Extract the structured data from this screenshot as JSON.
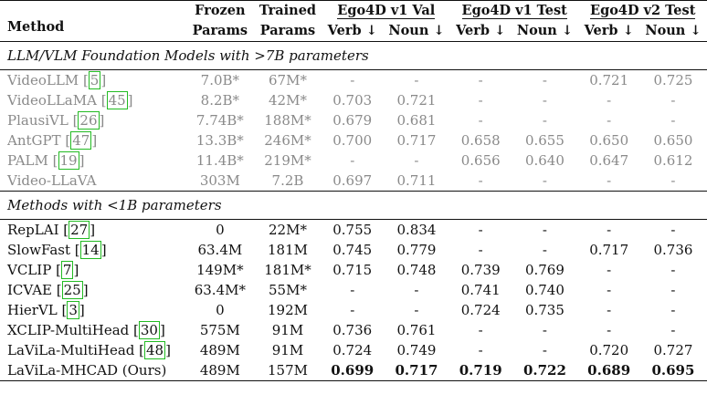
{
  "headers": {
    "method": "Method",
    "frozen": [
      "Frozen",
      "Params"
    ],
    "trained": [
      "Trained",
      "Params"
    ],
    "groups": [
      "Ego4D v1 Val",
      "Ego4D v1 Test",
      "Ego4D v2 Test"
    ],
    "sub": [
      "Verb ↓",
      "Noun ↓",
      "Verb ↓",
      "Noun ↓",
      "Verb ↓",
      "Noun ↓"
    ]
  },
  "section1": "LLM/VLM Foundation Models with >7B parameters",
  "section2": "Methods with <1B parameters",
  "rows_llm": [
    {
      "name": "VideoLLM",
      "cite": "5",
      "frozen": "7.0B*",
      "trained": "67M*",
      "vals": [
        "-",
        "-",
        "-",
        "-",
        "0.721",
        "0.725"
      ]
    },
    {
      "name": "VideoLLaMA",
      "cite": "45",
      "frozen": "8.2B*",
      "trained": "42M*",
      "vals": [
        "0.703",
        "0.721",
        "-",
        "-",
        "-",
        "-"
      ]
    },
    {
      "name": "PlausiVL",
      "cite": "26",
      "frozen": "7.74B*",
      "trained": "188M*",
      "vals": [
        "0.679",
        "0.681",
        "-",
        "-",
        "-",
        "-"
      ]
    },
    {
      "name": "AntGPT",
      "cite": "47",
      "frozen": "13.3B*",
      "trained": "246M*",
      "vals": [
        "0.700",
        "0.717",
        "0.658",
        "0.655",
        "0.650",
        "0.650"
      ]
    },
    {
      "name": "PALM",
      "cite": "19",
      "frozen": "11.4B*",
      "trained": "219M*",
      "vals": [
        "-",
        "-",
        "0.656",
        "0.640",
        "0.647",
        "0.612"
      ]
    },
    {
      "name": "Video-LLaVA",
      "cite": "",
      "frozen": "303M",
      "trained": "7.2B",
      "vals": [
        "0.697",
        "0.711",
        "-",
        "-",
        "-",
        "-"
      ]
    }
  ],
  "rows_small": [
    {
      "name": "RepLAI",
      "cite": "27",
      "frozen": "0",
      "trained": "22M*",
      "vals": [
        "0.755",
        "0.834",
        "-",
        "-",
        "-",
        "-"
      ]
    },
    {
      "name": "SlowFast",
      "cite": "14",
      "frozen": "63.4M",
      "trained": "181M",
      "vals": [
        "0.745",
        "0.779",
        "-",
        "-",
        "0.717",
        "0.736"
      ]
    },
    {
      "name": "VCLIP",
      "cite": "7",
      "frozen": "149M*",
      "trained": "181M*",
      "vals": [
        "0.715",
        "0.748",
        "0.739",
        "0.769",
        "-",
        "-"
      ]
    },
    {
      "name": "ICVAE",
      "cite": "25",
      "frozen": "63.4M*",
      "trained": "55M*",
      "vals": [
        "-",
        "-",
        "0.741",
        "0.740",
        "-",
        "-"
      ]
    },
    {
      "name": "HierVL",
      "cite": "3",
      "frozen": "0",
      "trained": "192M",
      "vals": [
        "-",
        "-",
        "0.724",
        "0.735",
        "-",
        "-"
      ]
    },
    {
      "name": "XCLIP-MultiHead",
      "cite": "30",
      "frozen": "575M",
      "trained": "91M",
      "vals": [
        "0.736",
        "0.761",
        "-",
        "-",
        "-",
        "-"
      ]
    },
    {
      "name": "LaViLa-MultiHead",
      "cite": "48",
      "frozen": "489M",
      "trained": "91M",
      "vals": [
        "0.724",
        "0.749",
        "-",
        "-",
        "0.720",
        "0.727"
      ]
    }
  ],
  "ours": {
    "name": "LaViLa-MHCAD (Ours)",
    "frozen": "489M",
    "trained": "157M",
    "vals": [
      "0.699",
      "0.717",
      "0.719",
      "0.722",
      "0.689",
      "0.695"
    ]
  }
}
